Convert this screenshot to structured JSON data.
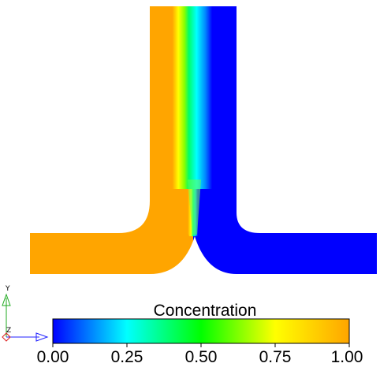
{
  "colorbar": {
    "title": "Concentration",
    "ticks": [
      "0.00",
      "0.25",
      "0.50",
      "0.75",
      "1.00"
    ],
    "range": [
      0.0,
      1.0
    ],
    "colormap": [
      "#0000ff",
      "#00ffff",
      "#00ff00",
      "#ffff00",
      "#ffa500"
    ]
  },
  "field": {
    "inlet_left_value": 1.0,
    "inlet_right_value": 0.0,
    "high_color": "#ffa500",
    "low_color": "#0000ff"
  },
  "axes_triad": {
    "x_label": "X",
    "y_label": "Y",
    "z_label": "Z",
    "x_color": "#2222ff",
    "y_color": "#22aa22",
    "z_color": "#dd2222"
  }
}
